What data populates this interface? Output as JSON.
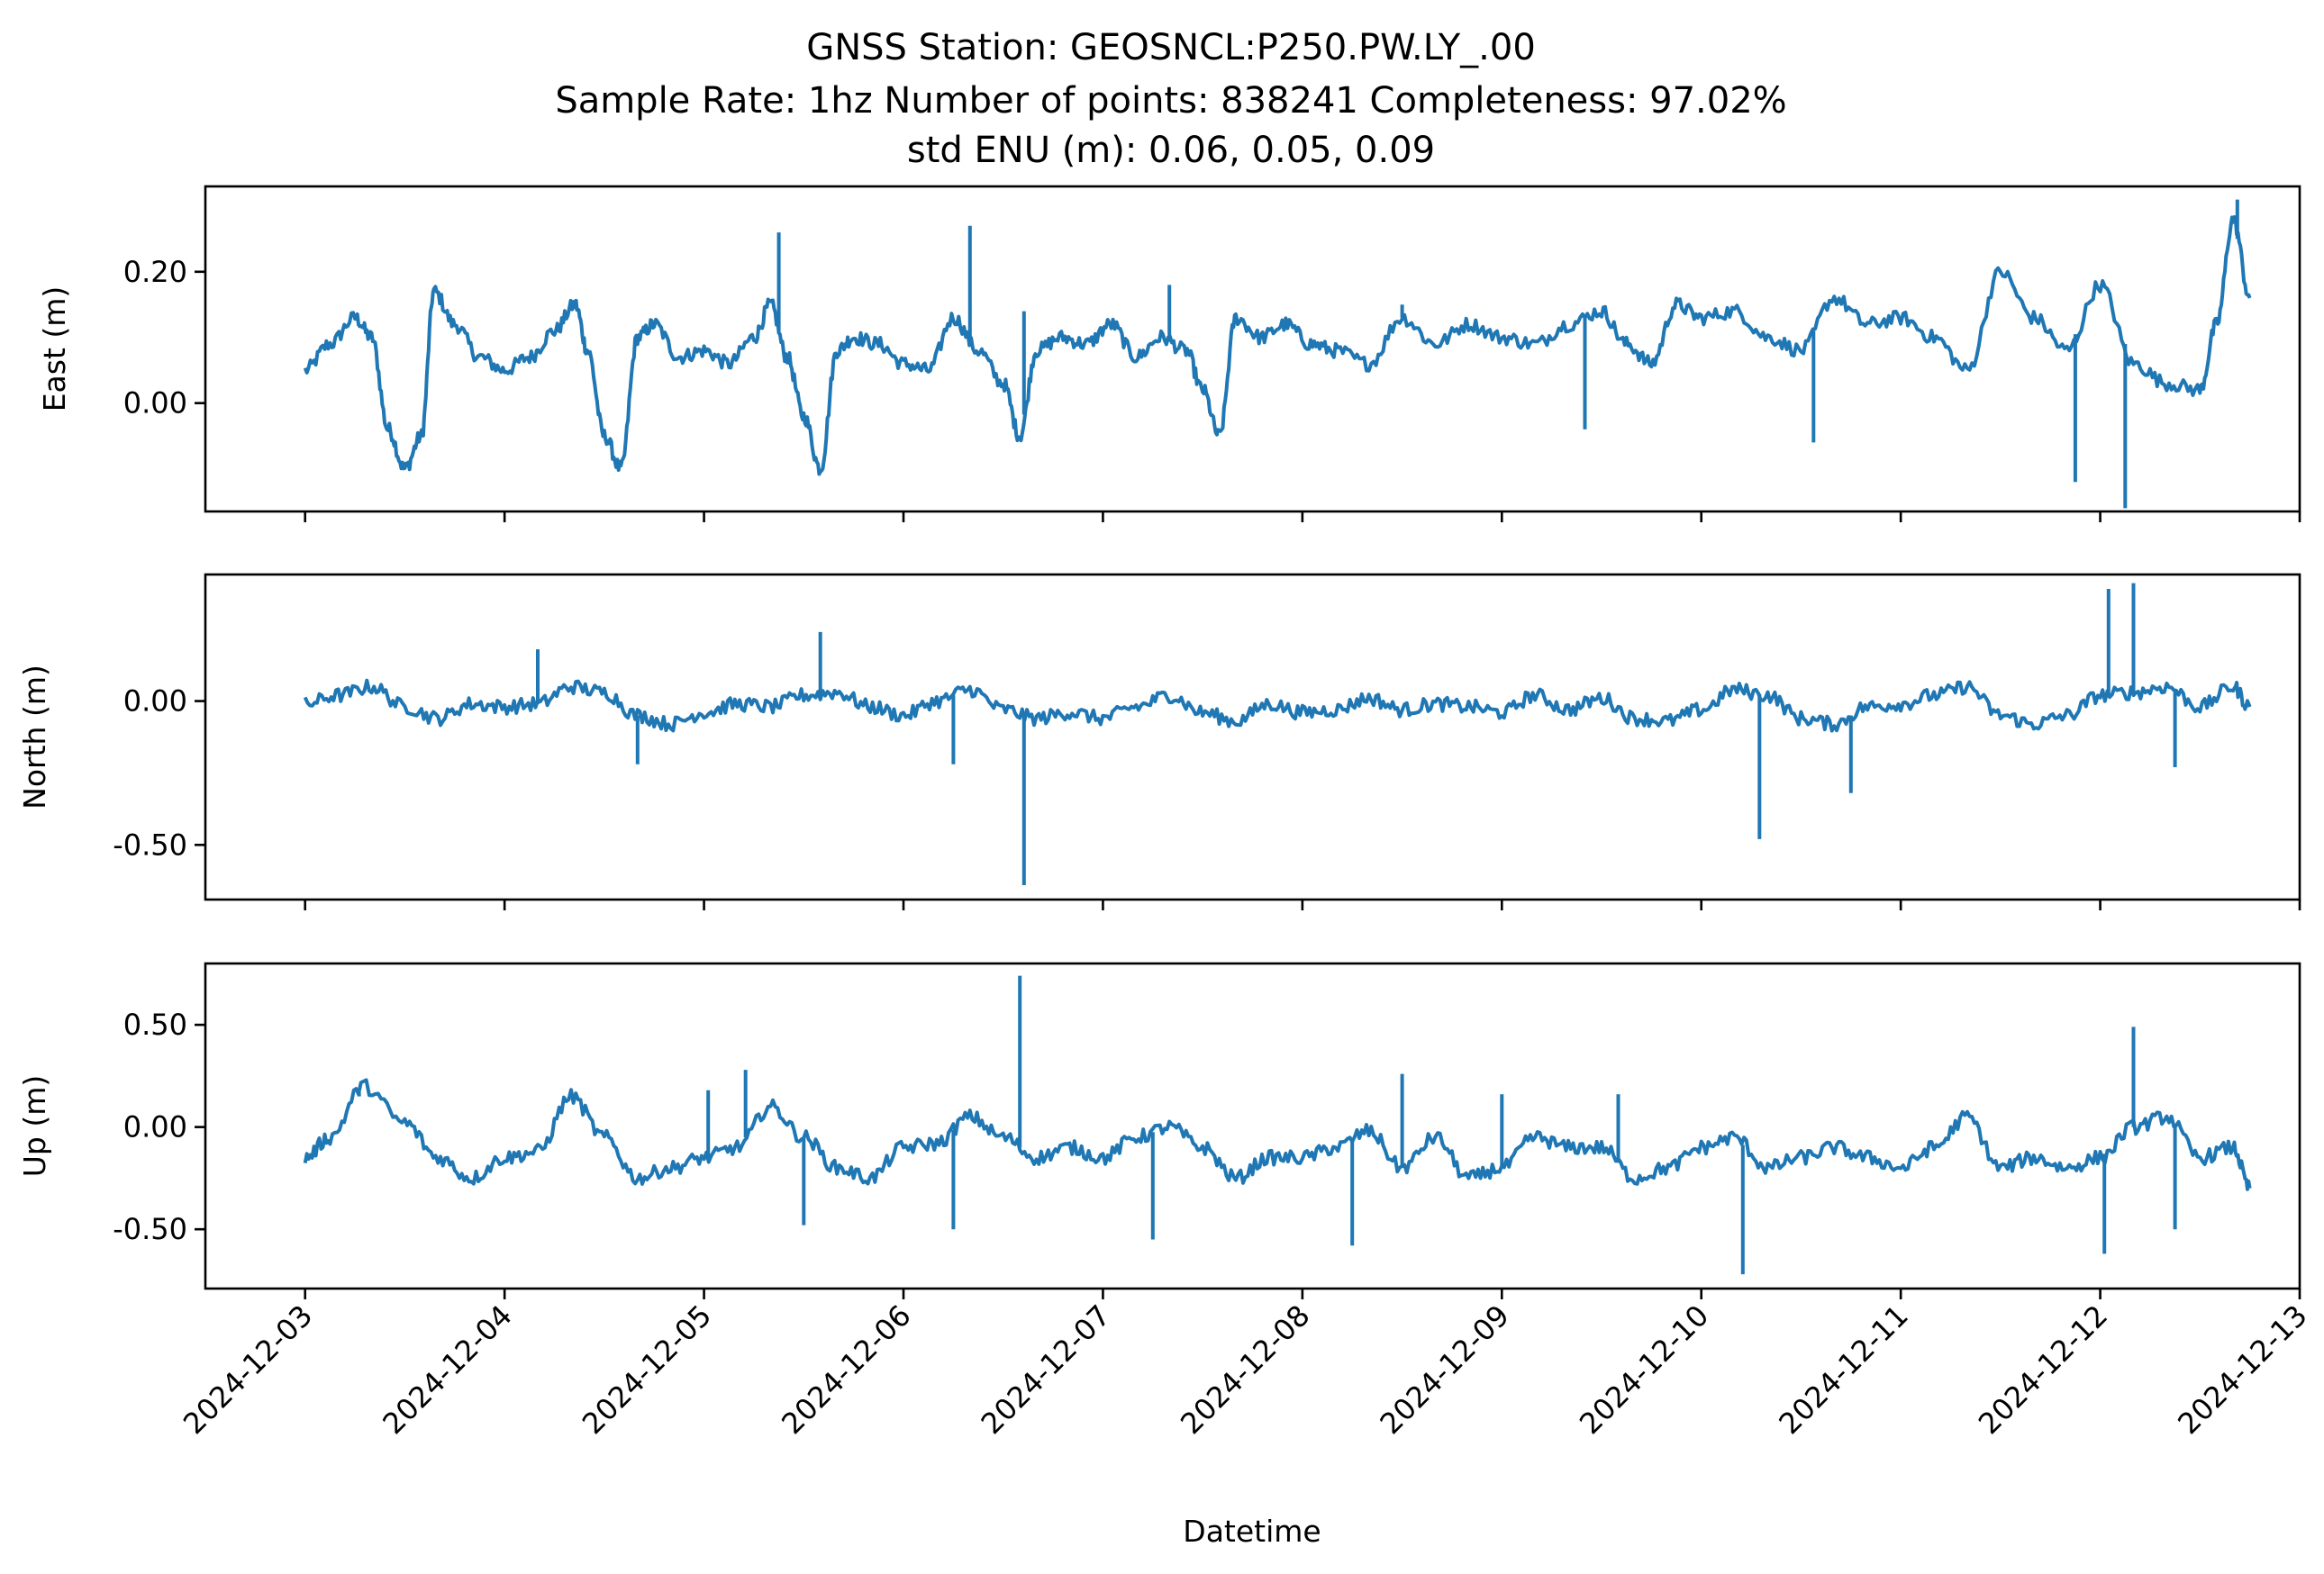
{
  "figure": {
    "title_lines": [
      "GNSS Station: GEOSNCL:P250.PW.LY_.00",
      "Sample Rate: 1hz   Number of points: 838241    Completeness:  97.02%",
      "std ENU (m):  0.06, 0.05, 0.09"
    ],
    "xlabel": "Datetime",
    "line_color": "#1f77b4"
  },
  "chart_data": [
    {
      "type": "line",
      "name": "east",
      "ylabel": "East (m)",
      "x_range": [
        "2024-12-02T12:00",
        "2024-12-13T00:00"
      ],
      "ylim": [
        -0.165,
        0.33
      ],
      "y_ticks": [
        {
          "value": 0.0,
          "label": "0.00"
        },
        {
          "value": 0.2,
          "label": "0.20"
        }
      ],
      "x_ticks": [
        "2024-12-03",
        "2024-12-04",
        "2024-12-05",
        "2024-12-06",
        "2024-12-07",
        "2024-12-08",
        "2024-12-09",
        "2024-12-10",
        "2024-12-11",
        "2024-12-12",
        "2024-12-13"
      ],
      "x_tick_labels_shown": false,
      "x": [
        "2024-12-03T00:00",
        "2024-12-03T03:00",
        "2024-12-03T06:00",
        "2024-12-03T08:00",
        "2024-12-03T10:00",
        "2024-12-03T12:00",
        "2024-12-03T14:00",
        "2024-12-03T15:30",
        "2024-12-03T18:00",
        "2024-12-03T21:00",
        "2024-12-04T00:00",
        "2024-12-04T03:00",
        "2024-12-04T06:00",
        "2024-12-04T08:30",
        "2024-12-04T10:00",
        "2024-12-04T12:00",
        "2024-12-04T14:00",
        "2024-12-04T16:00",
        "2024-12-04T18:00",
        "2024-12-04T21:00",
        "2024-12-05T00:00",
        "2024-12-05T03:00",
        "2024-12-05T06:00",
        "2024-12-05T08:00",
        "2024-12-05T10:00",
        "2024-12-05T12:00",
        "2024-12-05T14:00",
        "2024-12-05T16:00",
        "2024-12-05T18:00",
        "2024-12-05T21:00",
        "2024-12-06T00:00",
        "2024-12-06T03:00",
        "2024-12-06T06:00",
        "2024-12-06T09:00",
        "2024-12-06T12:00",
        "2024-12-06T14:00",
        "2024-12-06T16:00",
        "2024-12-06T19:00",
        "2024-12-06T22:00",
        "2024-12-07T01:00",
        "2024-12-07T04:00",
        "2024-12-07T07:00",
        "2024-12-07T10:00",
        "2024-12-07T12:00",
        "2024-12-07T14:00",
        "2024-12-07T16:00",
        "2024-12-07T19:00",
        "2024-12-07T22:00",
        "2024-12-08T01:00",
        "2024-12-08T04:00",
        "2024-12-08T08:00",
        "2024-12-08T12:00",
        "2024-12-08T16:00",
        "2024-12-08T20:00",
        "2024-12-09T00:00",
        "2024-12-09T04:00",
        "2024-12-09T08:00",
        "2024-12-09T12:00",
        "2024-12-09T15:00",
        "2024-12-09T18:00",
        "2024-12-09T21:00",
        "2024-12-10T00:00",
        "2024-12-10T04:00",
        "2024-12-10T08:00",
        "2024-12-10T12:00",
        "2024-12-10T16:00",
        "2024-12-10T20:00",
        "2024-12-11T00:00",
        "2024-12-11T04:00",
        "2024-12-11T08:00",
        "2024-12-11T12:00",
        "2024-12-11T16:00",
        "2024-12-11T20:00",
        "2024-12-12T00:00",
        "2024-12-12T04:00",
        "2024-12-12T08:00",
        "2024-12-12T12:00",
        "2024-12-12T14:00",
        "2024-12-12T16:00",
        "2024-12-12T18:00"
      ],
      "y": [
        0.05,
        0.09,
        0.13,
        0.1,
        -0.04,
        -0.1,
        -0.05,
        0.17,
        0.12,
        0.07,
        0.05,
        0.07,
        0.11,
        0.15,
        0.08,
        -0.05,
        -0.1,
        0.1,
        0.12,
        0.07,
        0.08,
        0.06,
        0.1,
        0.15,
        0.07,
        -0.02,
        -0.1,
        0.08,
        0.1,
        0.09,
        0.06,
        0.05,
        0.13,
        0.08,
        0.03,
        -0.05,
        0.08,
        0.1,
        0.09,
        0.12,
        0.07,
        0.1,
        0.08,
        0.02,
        -0.05,
        0.13,
        0.1,
        0.12,
        0.09,
        0.08,
        0.06,
        0.13,
        0.09,
        0.12,
        0.1,
        0.09,
        0.12,
        0.14,
        0.09,
        0.06,
        0.15,
        0.13,
        0.14,
        0.1,
        0.08,
        0.16,
        0.12,
        0.13,
        0.1,
        0.05,
        0.2,
        0.13,
        0.08,
        0.18,
        0.06,
        0.03,
        0.02,
        0.12,
        0.28,
        0.16
      ],
      "spikes": [
        {
          "x": "2024-12-04T04:00",
          "y": 0.08
        },
        {
          "x": "2024-12-05T09:00",
          "y": 0.26
        },
        {
          "x": "2024-12-06T08:00",
          "y": 0.27
        },
        {
          "x": "2024-12-06T14:30",
          "y": 0.14
        },
        {
          "x": "2024-12-07T08:00",
          "y": 0.18
        },
        {
          "x": "2024-12-08T12:00",
          "y": 0.15
        },
        {
          "x": "2024-12-09T10:00",
          "y": -0.04
        },
        {
          "x": "2024-12-10T13:30",
          "y": -0.06
        },
        {
          "x": "2024-12-11T21:00",
          "y": -0.12
        },
        {
          "x": "2024-12-12T03:00",
          "y": -0.16
        },
        {
          "x": "2024-12-12T16:30",
          "y": 0.31
        }
      ]
    },
    {
      "type": "line",
      "name": "north",
      "ylabel": "North (m)",
      "x_range": [
        "2024-12-02T12:00",
        "2024-12-13T00:00"
      ],
      "ylim": [
        -0.69,
        0.44
      ],
      "y_ticks": [
        {
          "value": 0.0,
          "label": "0.00"
        },
        {
          "value": -0.5,
          "label": "-0.50"
        }
      ],
      "x_ticks": [
        "2024-12-03",
        "2024-12-04",
        "2024-12-05",
        "2024-12-06",
        "2024-12-07",
        "2024-12-08",
        "2024-12-09",
        "2024-12-10",
        "2024-12-11",
        "2024-12-12",
        "2024-12-13"
      ],
      "x_tick_labels_shown": false,
      "x": [
        "2024-12-03T00:00",
        "2024-12-03T04:00",
        "2024-12-03T08:00",
        "2024-12-03T12:00",
        "2024-12-03T16:00",
        "2024-12-03T20:00",
        "2024-12-04T00:00",
        "2024-12-04T04:00",
        "2024-12-04T08:00",
        "2024-12-04T12:00",
        "2024-12-04T16:00",
        "2024-12-04T20:00",
        "2024-12-05T00:00",
        "2024-12-05T04:00",
        "2024-12-05T08:00",
        "2024-12-05T12:00",
        "2024-12-05T16:00",
        "2024-12-05T20:00",
        "2024-12-06T00:00",
        "2024-12-06T04:00",
        "2024-12-06T08:00",
        "2024-12-06T12:00",
        "2024-12-06T16:00",
        "2024-12-06T20:00",
        "2024-12-07T00:00",
        "2024-12-07T04:00",
        "2024-12-07T08:00",
        "2024-12-07T12:00",
        "2024-12-07T16:00",
        "2024-12-07T20:00",
        "2024-12-08T00:00",
        "2024-12-08T04:00",
        "2024-12-08T08:00",
        "2024-12-08T12:00",
        "2024-12-08T16:00",
        "2024-12-08T20:00",
        "2024-12-09T00:00",
        "2024-12-09T04:00",
        "2024-12-09T08:00",
        "2024-12-09T12:00",
        "2024-12-09T16:00",
        "2024-12-09T20:00",
        "2024-12-10T00:00",
        "2024-12-10T04:00",
        "2024-12-10T08:00",
        "2024-12-10T12:00",
        "2024-12-10T16:00",
        "2024-12-10T20:00",
        "2024-12-11T00:00",
        "2024-12-11T04:00",
        "2024-12-11T08:00",
        "2024-12-11T12:00",
        "2024-12-11T16:00",
        "2024-12-11T20:00",
        "2024-12-12T00:00",
        "2024-12-12T04:00",
        "2024-12-12T08:00",
        "2024-12-12T12:00",
        "2024-12-12T16:00",
        "2024-12-12T18:00"
      ],
      "y": [
        -0.01,
        0.02,
        0.05,
        -0.02,
        -0.06,
        -0.01,
        -0.02,
        -0.01,
        0.05,
        0.03,
        -0.05,
        -0.08,
        -0.04,
        -0.01,
        -0.02,
        0.02,
        0.03,
        -0.02,
        -0.05,
        0.0,
        0.04,
        -0.03,
        -0.06,
        -0.04,
        -0.06,
        -0.02,
        0.02,
        -0.04,
        -0.07,
        -0.01,
        -0.04,
        -0.03,
        0.01,
        -0.03,
        -0.01,
        -0.02,
        -0.04,
        0.02,
        -0.03,
        0.01,
        -0.06,
        -0.07,
        -0.03,
        0.04,
        0.02,
        -0.06,
        -0.08,
        -0.02,
        -0.01,
        0.02,
        0.05,
        -0.05,
        -0.08,
        -0.05,
        0.02,
        0.03,
        0.05,
        -0.02,
        0.05,
        -0.02
      ],
      "spikes": [
        {
          "x": "2024-12-04T04:00",
          "y": 0.18
        },
        {
          "x": "2024-12-04T16:00",
          "y": -0.22
        },
        {
          "x": "2024-12-05T14:00",
          "y": 0.24
        },
        {
          "x": "2024-12-06T06:00",
          "y": -0.22
        },
        {
          "x": "2024-12-06T14:30",
          "y": -0.64
        },
        {
          "x": "2024-12-10T07:00",
          "y": -0.48
        },
        {
          "x": "2024-12-10T18:00",
          "y": -0.32
        },
        {
          "x": "2024-12-12T01:00",
          "y": 0.39
        },
        {
          "x": "2024-12-12T04:00",
          "y": 0.41
        },
        {
          "x": "2024-12-12T09:00",
          "y": -0.23
        }
      ]
    },
    {
      "type": "line",
      "name": "up",
      "ylabel": "Up (m)",
      "x_range": [
        "2024-12-02T12:00",
        "2024-12-13T00:00"
      ],
      "ylim": [
        -0.79,
        0.8
      ],
      "y_ticks": [
        {
          "value": 0.5,
          "label": "0.50"
        },
        {
          "value": 0.0,
          "label": "0.00"
        },
        {
          "value": -0.5,
          "label": "-0.50"
        }
      ],
      "x_ticks": [
        "2024-12-03",
        "2024-12-04",
        "2024-12-05",
        "2024-12-06",
        "2024-12-07",
        "2024-12-08",
        "2024-12-09",
        "2024-12-10",
        "2024-12-11",
        "2024-12-12",
        "2024-12-13"
      ],
      "x_tick_labels_shown": true,
      "x": [
        "2024-12-03T00:00",
        "2024-12-03T03:00",
        "2024-12-03T07:00",
        "2024-12-03T12:00",
        "2024-12-03T16:00",
        "2024-12-03T20:00",
        "2024-12-04T00:00",
        "2024-12-04T04:00",
        "2024-12-04T08:00",
        "2024-12-04T12:00",
        "2024-12-04T16:00",
        "2024-12-04T20:00",
        "2024-12-05T00:00",
        "2024-12-05T04:00",
        "2024-12-05T08:00",
        "2024-12-05T12:00",
        "2024-12-05T16:00",
        "2024-12-05T20:00",
        "2024-12-06T00:00",
        "2024-12-06T04:00",
        "2024-12-06T08:00",
        "2024-12-06T12:00",
        "2024-12-06T16:00",
        "2024-12-06T20:00",
        "2024-12-07T00:00",
        "2024-12-07T04:00",
        "2024-12-07T08:00",
        "2024-12-07T12:00",
        "2024-12-07T16:00",
        "2024-12-07T20:00",
        "2024-12-08T00:00",
        "2024-12-08T04:00",
        "2024-12-08T08:00",
        "2024-12-08T12:00",
        "2024-12-08T16:00",
        "2024-12-08T20:00",
        "2024-12-09T00:00",
        "2024-12-09T04:00",
        "2024-12-09T08:00",
        "2024-12-09T12:00",
        "2024-12-09T16:00",
        "2024-12-09T20:00",
        "2024-12-10T00:00",
        "2024-12-10T04:00",
        "2024-12-10T08:00",
        "2024-12-10T12:00",
        "2024-12-10T16:00",
        "2024-12-10T20:00",
        "2024-12-11T00:00",
        "2024-12-11T04:00",
        "2024-12-11T08:00",
        "2024-12-11T12:00",
        "2024-12-11T16:00",
        "2024-12-11T20:00",
        "2024-12-12T00:00",
        "2024-12-12T04:00",
        "2024-12-12T08:00",
        "2024-12-12T12:00",
        "2024-12-12T16:00",
        "2024-12-12T18:00"
      ],
      "y": [
        -0.15,
        -0.05,
        0.2,
        0.02,
        -0.15,
        -0.25,
        -0.15,
        -0.12,
        0.15,
        -0.05,
        -0.25,
        -0.2,
        -0.15,
        -0.1,
        0.1,
        -0.05,
        -0.2,
        -0.25,
        -0.1,
        -0.08,
        0.05,
        -0.05,
        -0.15,
        -0.1,
        -0.15,
        -0.05,
        0.0,
        -0.1,
        -0.25,
        -0.15,
        -0.15,
        -0.1,
        -0.02,
        -0.2,
        -0.05,
        -0.25,
        -0.2,
        -0.05,
        -0.1,
        -0.1,
        -0.25,
        -0.2,
        -0.1,
        -0.05,
        -0.2,
        -0.15,
        -0.1,
        -0.15,
        -0.2,
        -0.1,
        0.05,
        -0.2,
        -0.15,
        -0.2,
        -0.15,
        0.0,
        0.05,
        -0.15,
        -0.1,
        -0.3
      ],
      "spikes": [
        {
          "x": "2024-12-03T06:30",
          "y": 0.15
        },
        {
          "x": "2024-12-05T00:30",
          "y": 0.18
        },
        {
          "x": "2024-12-05T05:00",
          "y": 0.28
        },
        {
          "x": "2024-12-05T12:00",
          "y": -0.48
        },
        {
          "x": "2024-12-06T06:00",
          "y": -0.5
        },
        {
          "x": "2024-12-06T14:00",
          "y": 0.74
        },
        {
          "x": "2024-12-07T06:00",
          "y": -0.55
        },
        {
          "x": "2024-12-08T06:00",
          "y": -0.58
        },
        {
          "x": "2024-12-08T12:00",
          "y": 0.26
        },
        {
          "x": "2024-12-09T00:00",
          "y": 0.16
        },
        {
          "x": "2024-12-09T14:00",
          "y": 0.16
        },
        {
          "x": "2024-12-10T05:00",
          "y": -0.72
        },
        {
          "x": "2024-12-12T00:30",
          "y": -0.62
        },
        {
          "x": "2024-12-12T04:00",
          "y": 0.49
        },
        {
          "x": "2024-12-12T09:00",
          "y": -0.5
        }
      ]
    }
  ]
}
